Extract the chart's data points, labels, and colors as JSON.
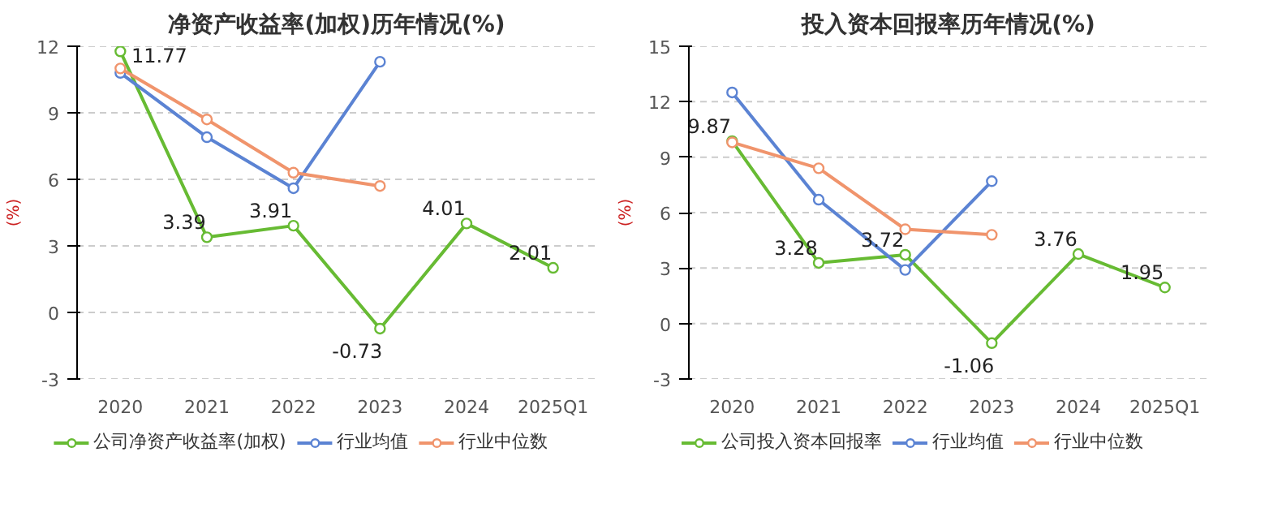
{
  "chart_data": [
    {
      "type": "line",
      "title": "净资产收益率(加权)历年情况(%)",
      "ylabel": "(%)",
      "categories": [
        "2020",
        "2021",
        "2022",
        "2023",
        "2024",
        "2025Q1"
      ],
      "ylim": [
        -3,
        12
      ],
      "yticks": [
        -3,
        0,
        3,
        6,
        9,
        12
      ],
      "grid": "y",
      "legend": "bottom",
      "marker": "circle",
      "line_style": "solid",
      "series": [
        {
          "name": "公司净资产收益率(加权)",
          "color": "#67bb33",
          "values": [
            11.77,
            3.39,
            3.91,
            -0.73,
            4.01,
            2.01
          ],
          "value_labels": [
            "11.77",
            "3.39",
            "3.91",
            "-0.73",
            "4.01",
            "2.01"
          ]
        },
        {
          "name": "行业均值",
          "color": "#5b83d3",
          "values": [
            10.8,
            7.9,
            5.6,
            11.3,
            null,
            null
          ]
        },
        {
          "name": "行业中位数",
          "color": "#f0946c",
          "values": [
            11.0,
            8.7,
            6.3,
            5.7,
            null,
            null
          ]
        }
      ]
    },
    {
      "type": "line",
      "title": "投入资本回报率历年情况(%)",
      "ylabel": "(%)",
      "categories": [
        "2020",
        "2021",
        "2022",
        "2023",
        "2024",
        "2025Q1"
      ],
      "ylim": [
        -3,
        15
      ],
      "yticks": [
        -3,
        0,
        3,
        6,
        9,
        12,
        15
      ],
      "grid": "y",
      "legend": "bottom",
      "marker": "circle",
      "line_style": "solid",
      "series": [
        {
          "name": "公司投入资本回报率",
          "color": "#67bb33",
          "values": [
            9.87,
            3.28,
            3.72,
            -1.06,
            3.76,
            1.95
          ],
          "value_labels": [
            "9.87",
            "3.28",
            "3.72",
            "-1.06",
            "3.76",
            "1.95"
          ]
        },
        {
          "name": "行业均值",
          "color": "#5b83d3",
          "values": [
            12.5,
            6.7,
            2.9,
            7.7,
            null,
            null
          ]
        },
        {
          "name": "行业中位数",
          "color": "#f0946c",
          "values": [
            9.8,
            8.4,
            5.1,
            4.8,
            null,
            null
          ]
        }
      ]
    }
  ]
}
